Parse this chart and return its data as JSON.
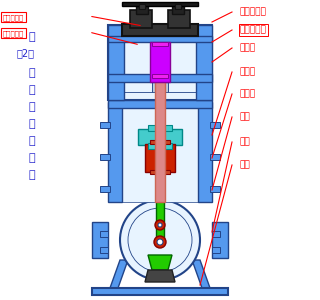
{
  "bg_color": "#ffffff",
  "blue": "#5599ee",
  "blue2": "#77bbff",
  "dark_blue": "#224488",
  "cyan": "#44cccc",
  "red": "#ff0000",
  "purple": "#cc00ff",
  "salmon": "#dd8888",
  "dark_red": "#cc2200",
  "green": "#22cc00",
  "dark_green": "#006600",
  "gray_dark": "#333333",
  "gray_mid": "#555555",
  "white_blue": "#e8f4ff",
  "blue_text": "#2222cc",
  "left_labels": [
    "二级吸气阀",
    "一级排气阀"
  ],
  "right_labels": [
    "一级吸气阀",
    "二级排气阀",
    "气缸组",
    "刮油环",
    "十字头",
    "连杆",
    "曲轴",
    "机座"
  ],
  "title_chars": [
    "图",
    "（2）",
    "空",
    "压",
    "机",
    "主",
    "机",
    "总",
    "图"
  ]
}
